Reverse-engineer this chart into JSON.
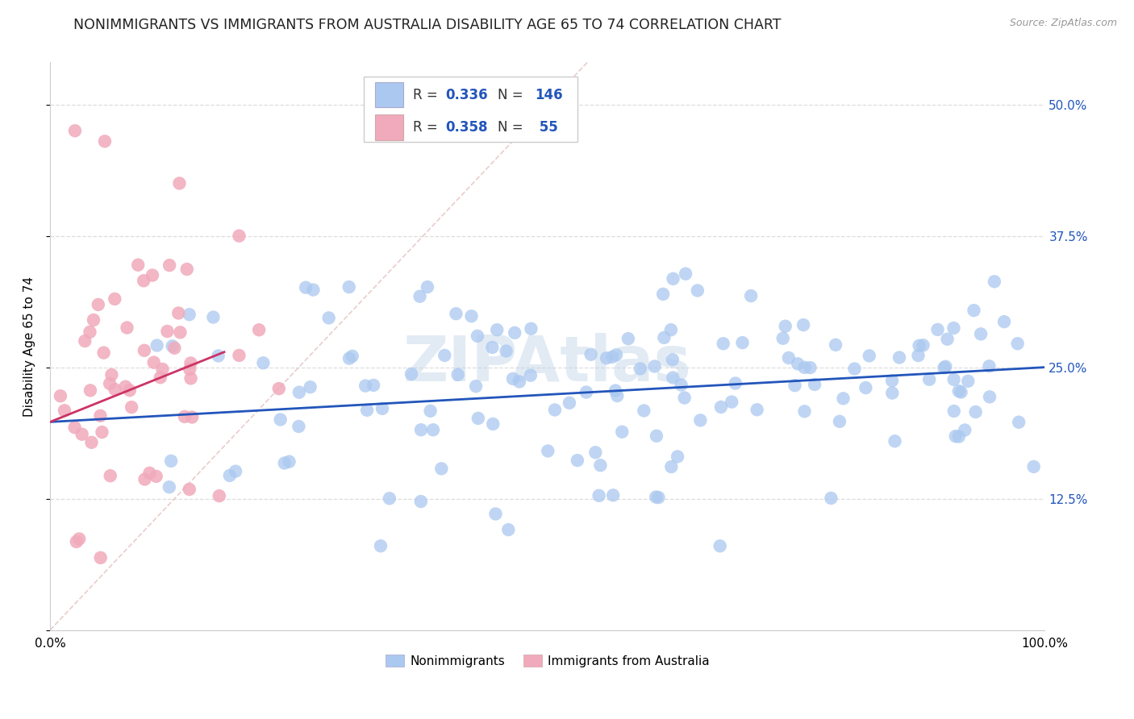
{
  "title": "NONIMMIGRANTS VS IMMIGRANTS FROM AUSTRALIA DISABILITY AGE 65 TO 74 CORRELATION CHART",
  "source": "Source: ZipAtlas.com",
  "ylabel": "Disability Age 65 to 74",
  "xlim": [
    0,
    1.0
  ],
  "ylim": [
    0.0,
    0.54
  ],
  "yticks": [
    0.0,
    0.125,
    0.25,
    0.375,
    0.5
  ],
  "ytick_labels": [
    "",
    "12.5%",
    "25.0%",
    "37.5%",
    "50.0%"
  ],
  "xticks": [
    0.0,
    1.0
  ],
  "xtick_labels": [
    "0.0%",
    "100.0%"
  ],
  "blue_R": "0.336",
  "blue_N": "146",
  "pink_R": "0.358",
  "pink_N": " 55",
  "blue_color": "#aac8f0",
  "blue_line_color": "#2255bb",
  "pink_color": "#f0aabb",
  "pink_line_color": "#cc3366",
  "watermark": "ZIPAtlas",
  "background_color": "#ffffff",
  "grid_color": "#dddddd",
  "title_fontsize": 12.5,
  "axis_label_fontsize": 11,
  "tick_fontsize": 11,
  "legend_fontsize": 12,
  "blue_line_intercept": 0.198,
  "blue_line_slope": 0.052,
  "pink_line_intercept": 0.198,
  "pink_line_slope": 0.38,
  "pink_line_xmax": 0.175,
  "diag_line_color": "#ddaaaa",
  "right_tick_color": "#2255bb",
  "legend_value_color": "#2255bb"
}
